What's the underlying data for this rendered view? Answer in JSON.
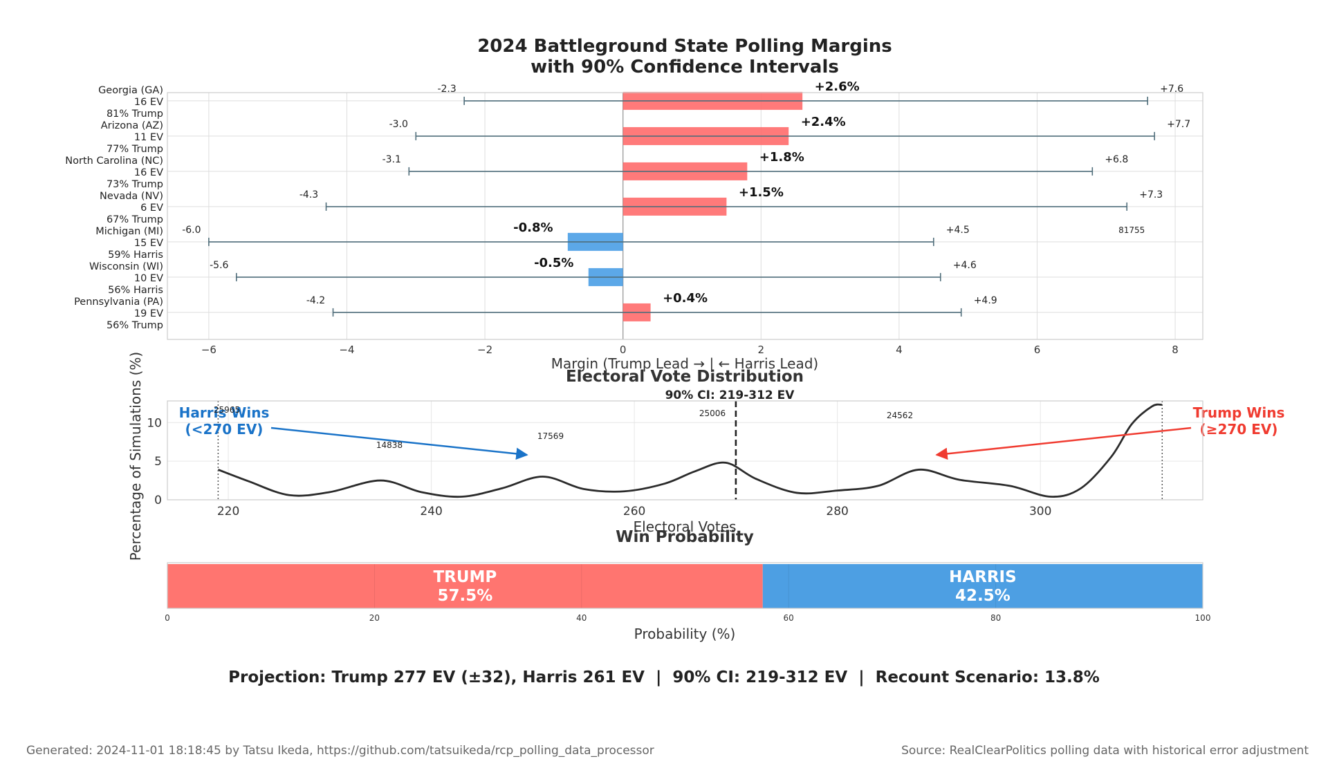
{
  "chart_data": [
    {
      "type": "bar",
      "title": "2024 Battleground State Polling Margins\nwith 90% Confidence Intervals",
      "xlabel": "Margin (Trump Lead → | ← Harris Lead)",
      "ylabel": "",
      "xlim": [
        -6.6,
        8.4
      ],
      "xticks": [
        -6,
        -4,
        -2,
        0,
        2,
        4,
        6,
        8
      ],
      "xtick_labels": [
        "−6",
        "−4",
        "−2",
        "0",
        "2",
        "4",
        "6",
        "8"
      ],
      "grid": true,
      "orientation": "horizontal",
      "states": [
        {
          "name": "Georgia (GA)",
          "ev": "16 EV",
          "prob": "81% Trump",
          "margin": 2.6,
          "label": "+2.6%",
          "ci_low": -2.3,
          "ci_high": 7.6,
          "ci_low_label": "-2.3",
          "ci_high_label": "+7.6",
          "leader": "Trump"
        },
        {
          "name": "Arizona (AZ)",
          "ev": "11 EV",
          "prob": "77% Trump",
          "margin": 2.4,
          "label": "+2.4%",
          "ci_low": -3.0,
          "ci_high": 7.7,
          "ci_low_label": "-3.0",
          "ci_high_label": "+7.7",
          "leader": "Trump"
        },
        {
          "name": "North Carolina (NC)",
          "ev": "16 EV",
          "prob": "73% Trump",
          "margin": 1.8,
          "label": "+1.8%",
          "ci_low": -3.1,
          "ci_high": 6.8,
          "ci_low_label": "-3.1",
          "ci_high_label": "+6.8",
          "leader": "Trump"
        },
        {
          "name": "Nevada (NV)",
          "ev": "6 EV",
          "prob": "67% Trump",
          "margin": 1.5,
          "label": "+1.5%",
          "ci_low": -4.3,
          "ci_high": 7.3,
          "ci_low_label": "-4.3",
          "ci_high_label": "+7.3",
          "leader": "Trump"
        },
        {
          "name": "Michigan (MI)",
          "ev": "15 EV",
          "prob": "59% Harris",
          "margin": -0.8,
          "label": "-0.8%",
          "ci_low": -6.0,
          "ci_high": 4.5,
          "ci_low_label": "-6.0",
          "ci_high_label": "+4.5",
          "leader": "Harris"
        },
        {
          "name": "Wisconsin (WI)",
          "ev": "10 EV",
          "prob": "56% Harris",
          "margin": -0.5,
          "label": "-0.5%",
          "ci_low": -5.6,
          "ci_high": 4.6,
          "ci_low_label": "-5.6",
          "ci_high_label": "+4.6",
          "leader": "Harris"
        },
        {
          "name": "Pennsylvania (PA)",
          "ev": "19 EV",
          "prob": "56% Trump",
          "margin": 0.4,
          "label": "+0.4%",
          "ci_low": -4.2,
          "ci_high": 4.9,
          "ci_low_label": "-4.2",
          "ci_high_label": "+4.9",
          "leader": "Trump"
        }
      ],
      "annotations": [
        "81755"
      ],
      "colors": {
        "trump": "#ff6b6b",
        "harris": "#4a9fe6",
        "ci": "#4f6d7a"
      }
    },
    {
      "type": "line",
      "title": "Electoral Vote Distribution",
      "subtitle": "90% CI: 219-312 EV",
      "xlabel": "Electoral Votes",
      "ylabel": "Percentage of Simulations (%)",
      "xlim": [
        214,
        316
      ],
      "ylim": [
        0,
        12.8
      ],
      "xticks": [
        220,
        240,
        260,
        280,
        300
      ],
      "yticks": [
        0,
        5,
        10
      ],
      "grid": true,
      "series": [
        {
          "x": [
            219,
            222,
            226,
            230,
            235,
            239,
            243,
            247,
            251,
            255,
            259,
            263,
            266,
            269,
            272,
            276,
            280,
            284,
            288,
            292,
            297,
            301,
            304,
            307,
            309,
            311,
            312
          ],
          "y": [
            3.9,
            2.4,
            0.6,
            1.0,
            2.5,
            1.0,
            0.4,
            1.5,
            3.0,
            1.4,
            1.1,
            2.1,
            3.7,
            4.8,
            2.7,
            0.9,
            1.2,
            1.8,
            3.9,
            2.6,
            1.8,
            0.4,
            1.5,
            5.6,
            9.8,
            12.1,
            12.3
          ]
        }
      ],
      "threshold_line": 270,
      "ci_lines": [
        219,
        312
      ],
      "annotations": [
        {
          "text": "Harris Wins\n(<270 EV)",
          "color": "#1a73c8"
        },
        {
          "text": "Trump Wins\n(≥270 EV)",
          "color": "#f03b30"
        },
        {
          "text": "25965"
        },
        {
          "text": "14838"
        },
        {
          "text": "17569"
        },
        {
          "text": "25006"
        },
        {
          "text": "24562"
        }
      ]
    },
    {
      "type": "bar",
      "title": "Win Probability",
      "xlabel": "Probability (%)",
      "xlim": [
        0,
        100
      ],
      "xticks": [
        0,
        20,
        40,
        60,
        80,
        100
      ],
      "segments": [
        {
          "name": "TRUMP",
          "value": 57.5,
          "label": "57.5%",
          "color": "#ff7570"
        },
        {
          "name": "HARRIS",
          "value": 42.5,
          "label": "42.5%",
          "color": "#4d9fe3"
        }
      ]
    }
  ],
  "summary": "Projection: Trump 277 EV (±32), Harris 261 EV  |  90% CI: 219-312 EV  |  Recount Scenario: 13.8%",
  "footer": {
    "left": "Generated: 2024-11-01 18:18:45 by Tatsu Ikeda, https://github.com/tatsuikeda/rcp_polling_data_processor",
    "right": "Source: RealClearPolitics polling data with historical error adjustment"
  }
}
